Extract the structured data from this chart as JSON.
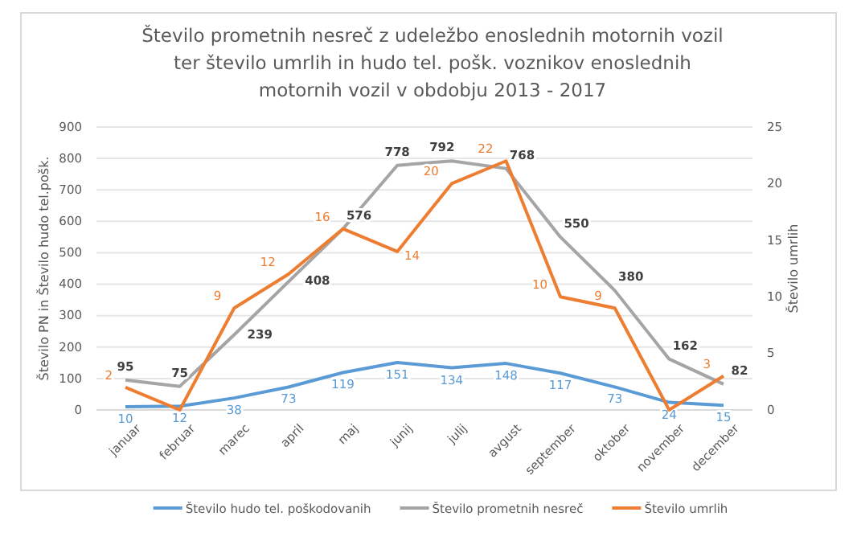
{
  "chart_data": {
    "type": "line",
    "title": "Število prometnih nesreč z udeležbo enoslednih motornih vozil ter število umrlih in hudo tel. pošk. voznikov enoslednih motornih vozil v obdobju 2013 - 2017",
    "ylabel": "Število PN in Število hudo tel.pošk.",
    "y2label": "Število umrlih",
    "categories": [
      "januar",
      "februar",
      "marec",
      "april",
      "maj",
      "junij",
      "julij",
      "avgust",
      "september",
      "oktober",
      "november",
      "december"
    ],
    "series": [
      {
        "name": "Število hudo tel. poškodovanih",
        "color": "#5b9bd5",
        "values": [
          10,
          12,
          38,
          73,
          119,
          151,
          134,
          148,
          117,
          73,
          24,
          15
        ]
      },
      {
        "name": "Število prometnih nesreč",
        "color": "#a5a5a5",
        "values": [
          95,
          75,
          239,
          408,
          576,
          778,
          792,
          768,
          550,
          380,
          162,
          82
        ]
      },
      {
        "name": "Število umrlih",
        "color": "#ed7d31",
        "axis": "y2",
        "values": [
          2,
          0,
          9,
          12,
          16,
          14,
          20,
          22,
          10,
          9,
          0,
          3
        ],
        "value_labels": [
          "2",
          null,
          "9",
          "12",
          "16",
          "14",
          "20",
          "22",
          "10",
          "9",
          null,
          "3"
        ]
      }
    ],
    "ylim": [
      0,
      900
    ],
    "yticks": [
      0,
      100,
      200,
      300,
      400,
      500,
      600,
      700,
      800,
      900
    ],
    "y2lim": [
      0,
      25
    ],
    "y2ticks": [
      0,
      5,
      10,
      15,
      20,
      25
    ],
    "grid": "y",
    "legend": "bottom",
    "marker": "none",
    "line_style": "solid",
    "data_labels": true
  }
}
